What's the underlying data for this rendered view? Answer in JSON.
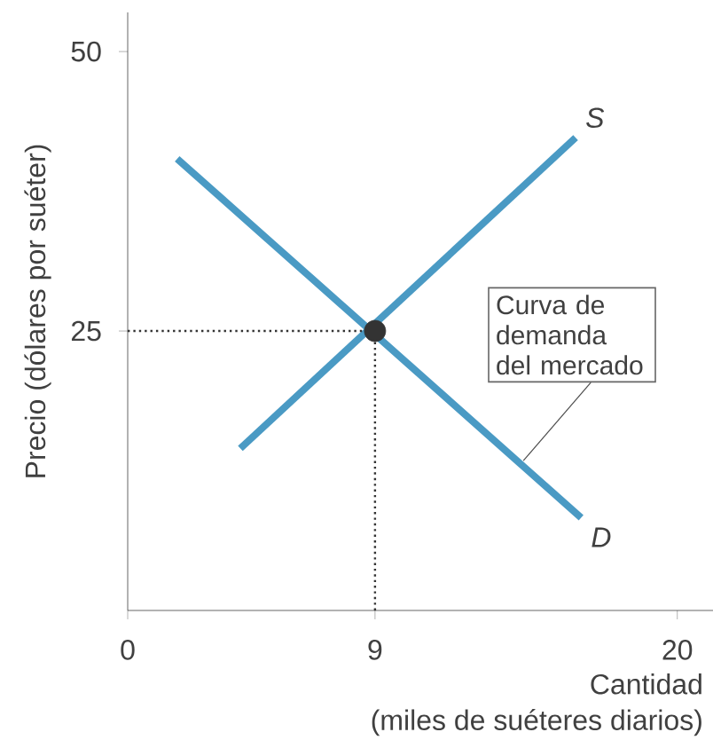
{
  "chart_data": {
    "type": "line",
    "xlabel": "Cantidad",
    "ylabel": "Precio (dólares por suéter)",
    "xlim": [
      0,
      21.3
    ],
    "ylim": [
      0,
      53.5
    ],
    "xticks": [
      0,
      9,
      20
    ],
    "yticks": [
      25,
      50
    ],
    "series": [
      {
        "name": "S",
        "color": "#4a9ac4",
        "marker": "none",
        "line_style": "solid",
        "x": [
          4.1,
          16.3
        ],
        "values": [
          14.5,
          42.3
        ]
      },
      {
        "name": "D",
        "color": "#4a9ac4",
        "marker": "none",
        "line_style": "solid",
        "x": [
          1.8,
          16.5
        ],
        "values": [
          40.4,
          8.3
        ]
      },
      {
        "type": "scatter",
        "color": "#333333",
        "marker": "circle",
        "x": [
          9
        ],
        "values": [
          25
        ]
      }
    ],
    "ref_lines": [
      {
        "axis": "x",
        "value": 9,
        "color": "#333333",
        "line_style": "dotted"
      },
      {
        "axis": "y",
        "value": 25,
        "color": "#333333",
        "line_style": "dotted"
      }
    ],
    "annotations": [
      "(miles de suéteres diarios)",
      {
        "text": "Curva de demanda del mercado",
        "x": 14.4,
        "y": 13.4
      }
    ]
  }
}
